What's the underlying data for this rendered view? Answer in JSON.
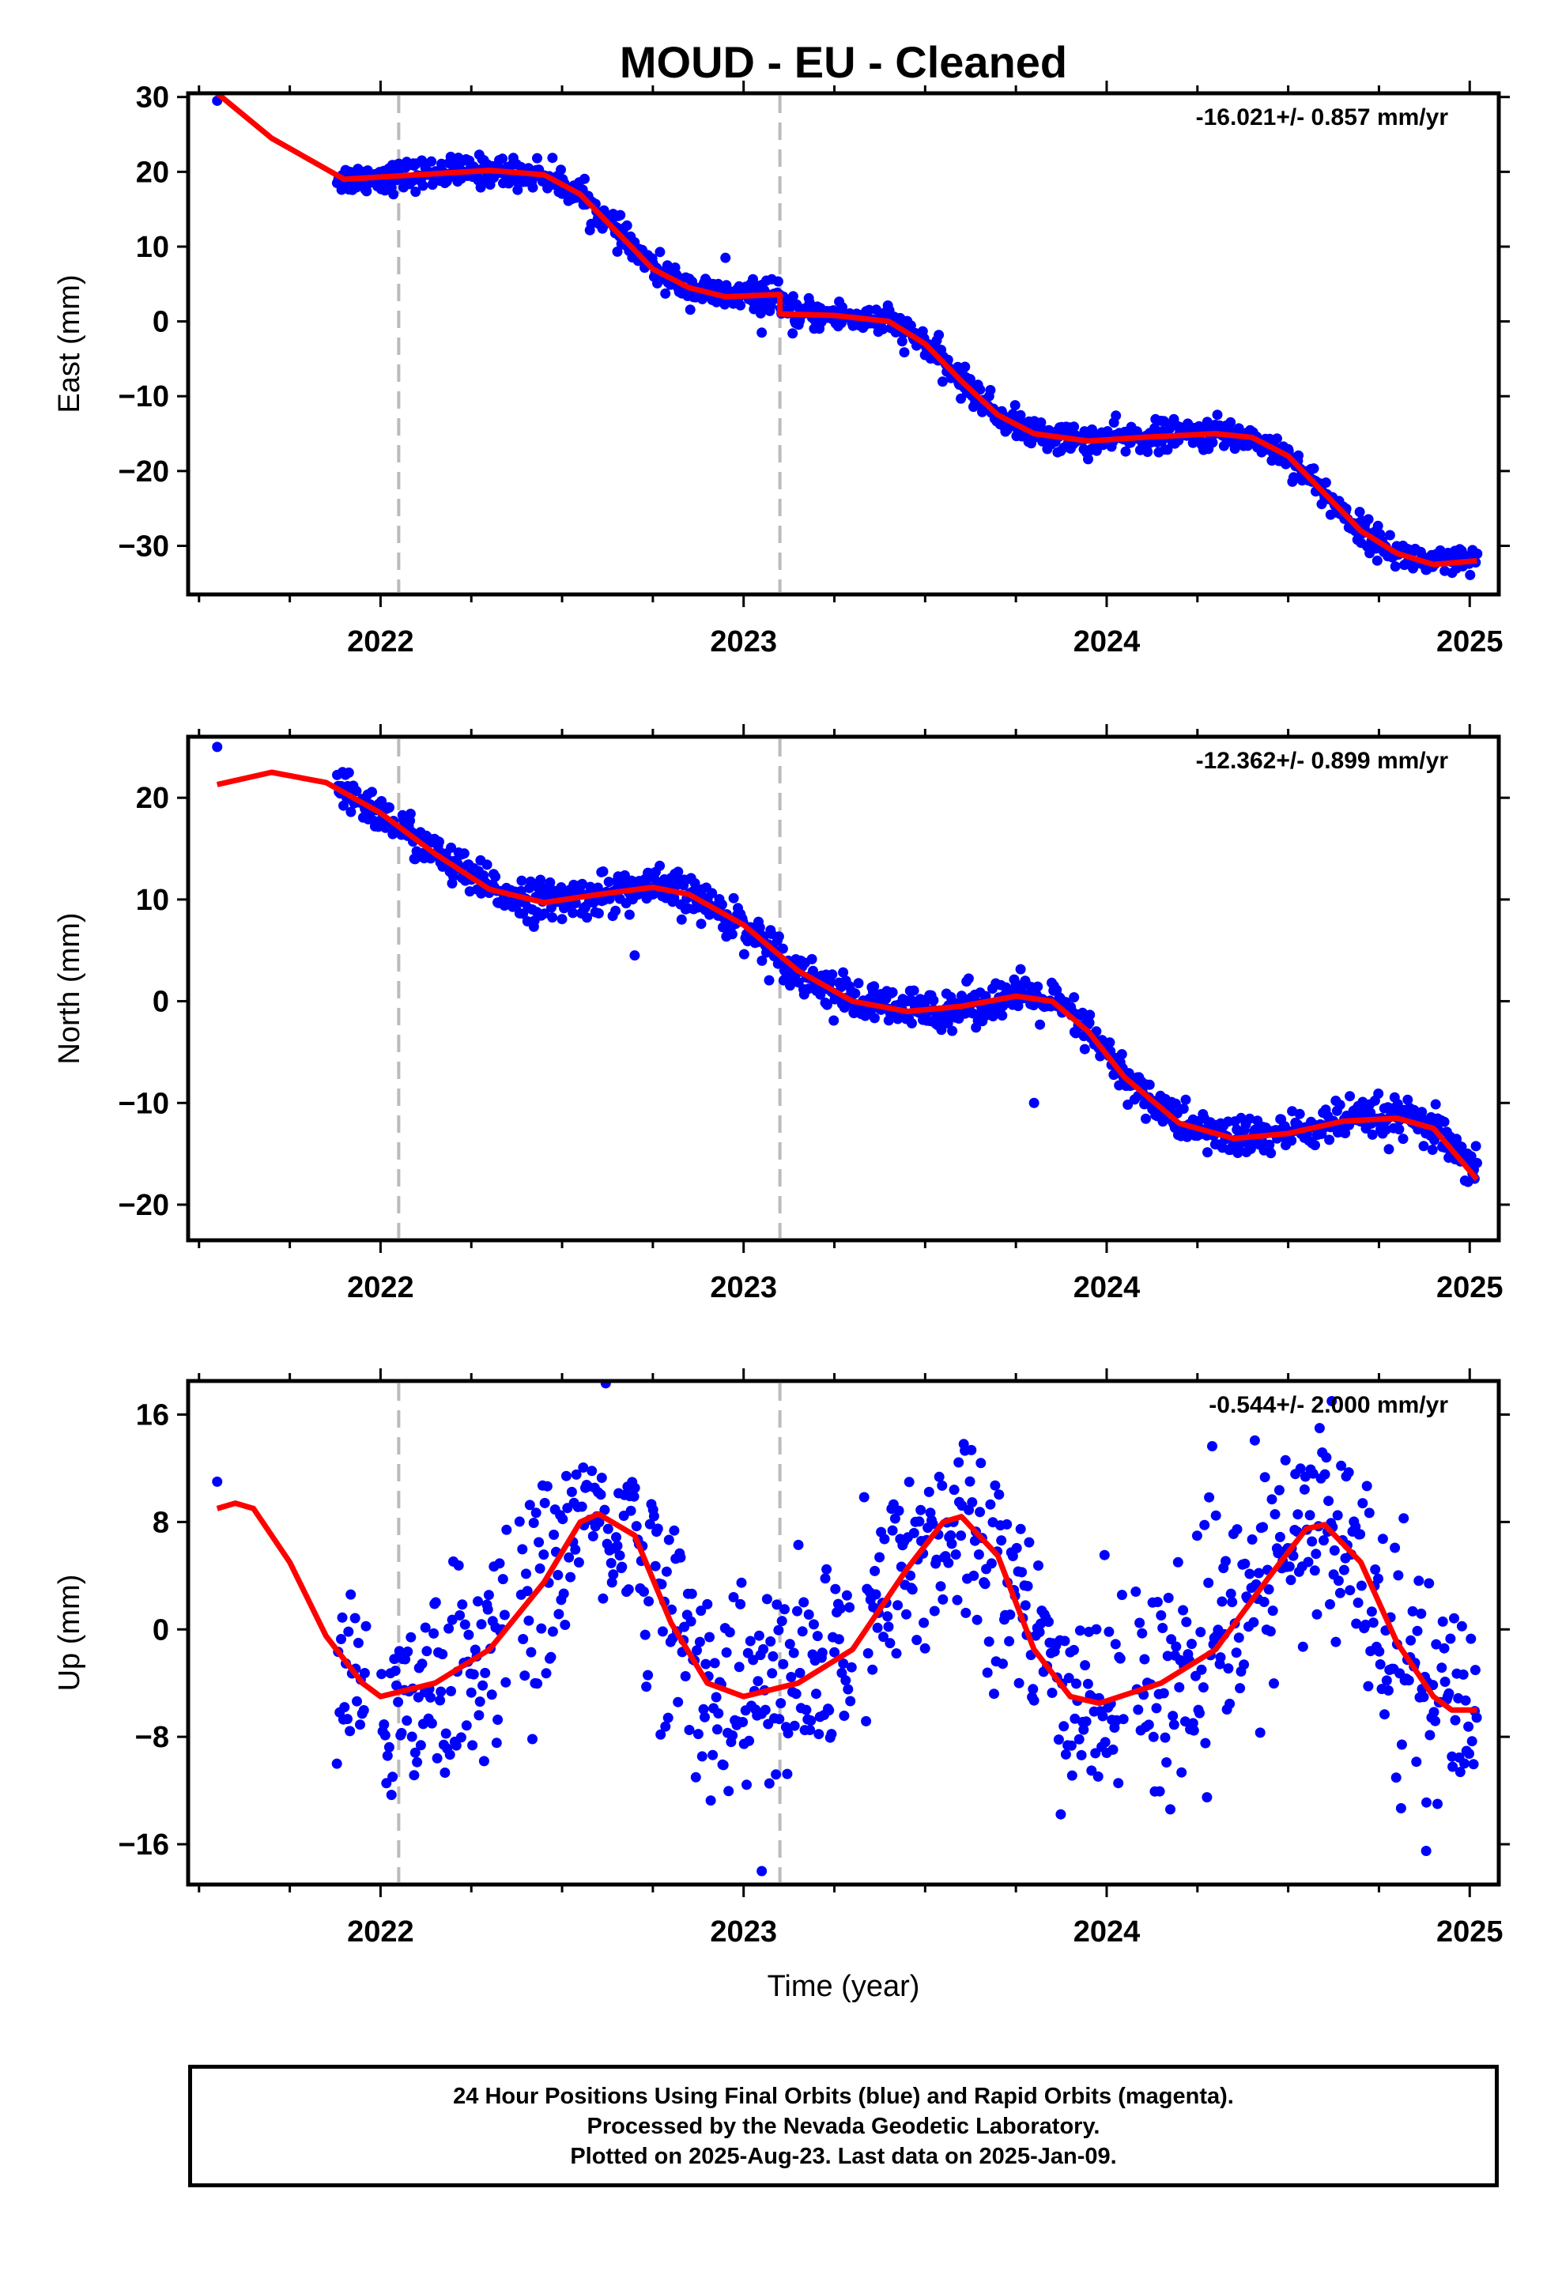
{
  "title": "MOUD  - EU - Cleaned",
  "xlabel": "Time (year)",
  "caption": {
    "line1": "24 Hour Positions Using Final Orbits (blue) and Rapid Orbits (magenta).",
    "line2": "Processed by the Nevada Geodetic Laboratory.",
    "line3": "Plotted on 2025-Aug-23. Last data on 2025-Jan-09."
  },
  "colors": {
    "points": "#0000ff",
    "fit": "#ff0000",
    "breaks": "#bbbbbb",
    "frame": "#000000"
  },
  "chart_data": [
    {
      "type": "scatter",
      "ylabel": "East (mm)",
      "rate_text": "-16.021+/- 0.857 mm/yr",
      "xlim": [
        2021.47,
        2025.08
      ],
      "ylim": [
        -36.5,
        30.5
      ],
      "yticks": [
        30,
        20,
        10,
        0,
        -10,
        -20,
        -30
      ],
      "xticks": [
        2022,
        2023,
        2024,
        2025
      ],
      "breaks": [
        2022.05,
        2023.1
      ],
      "data_range": [
        2021.88,
        2025.02
      ],
      "noise": 1.0,
      "outliers": [
        [
          2021.55,
          29.5
        ],
        [
          2022.95,
          8.5
        ],
        [
          2023.05,
          -1.5
        ]
      ],
      "fit": [
        [
          2021.55,
          30.5
        ],
        [
          2021.7,
          24.5
        ],
        [
          2021.9,
          19.0
        ],
        [
          2022.1,
          19.6
        ],
        [
          2022.3,
          20.2
        ],
        [
          2022.45,
          19.6
        ],
        [
          2022.55,
          17.0
        ],
        [
          2022.65,
          12.0
        ],
        [
          2022.75,
          7.0
        ],
        [
          2022.85,
          4.5
        ],
        [
          2022.95,
          3.3
        ],
        [
          2023.1,
          3.6
        ],
        [
          2023.1,
          1.0
        ],
        [
          2023.25,
          0.8
        ],
        [
          2023.4,
          0.0
        ],
        [
          2023.5,
          -3.0
        ],
        [
          2023.6,
          -8.0
        ],
        [
          2023.7,
          -12.5
        ],
        [
          2023.8,
          -15.0
        ],
        [
          2023.95,
          -16.0
        ],
        [
          2024.1,
          -15.5
        ],
        [
          2024.3,
          -15.0
        ],
        [
          2024.4,
          -15.5
        ],
        [
          2024.5,
          -18.0
        ],
        [
          2024.6,
          -23.0
        ],
        [
          2024.7,
          -28.0
        ],
        [
          2024.8,
          -31.0
        ],
        [
          2024.9,
          -32.5
        ],
        [
          2025.02,
          -32.0
        ]
      ]
    },
    {
      "type": "scatter",
      "ylabel": "North (mm)",
      "rate_text": "-12.362+/- 0.899 mm/yr",
      "xlim": [
        2021.47,
        2025.08
      ],
      "ylim": [
        -23.5,
        26.0
      ],
      "yticks": [
        20,
        10,
        0,
        -10,
        -20
      ],
      "xticks": [
        2022,
        2023,
        2024,
        2025
      ],
      "breaks": [
        2022.05,
        2023.1
      ],
      "data_range": [
        2021.88,
        2025.02
      ],
      "noise": 1.0,
      "outliers": [
        [
          2021.55,
          25.0
        ],
        [
          2022.7,
          4.5
        ],
        [
          2023.8,
          -10.0
        ]
      ],
      "fit": [
        [
          2021.55,
          21.3
        ],
        [
          2021.7,
          22.5
        ],
        [
          2021.85,
          21.5
        ],
        [
          2022.0,
          18.5
        ],
        [
          2022.15,
          14.5
        ],
        [
          2022.3,
          11.0
        ],
        [
          2022.45,
          9.7
        ],
        [
          2022.6,
          10.5
        ],
        [
          2022.75,
          11.2
        ],
        [
          2022.85,
          10.5
        ],
        [
          2023.0,
          7.5
        ],
        [
          2023.15,
          3.0
        ],
        [
          2023.3,
          0.0
        ],
        [
          2023.45,
          -1.0
        ],
        [
          2023.6,
          -0.5
        ],
        [
          2023.75,
          0.5
        ],
        [
          2023.85,
          0.0
        ],
        [
          2023.95,
          -3.0
        ],
        [
          2024.05,
          -7.5
        ],
        [
          2024.2,
          -12.0
        ],
        [
          2024.35,
          -13.5
        ],
        [
          2024.5,
          -13.0
        ],
        [
          2024.65,
          -11.8
        ],
        [
          2024.8,
          -11.5
        ],
        [
          2024.9,
          -12.5
        ],
        [
          2025.02,
          -17.5
        ]
      ]
    },
    {
      "type": "scatter",
      "ylabel": "Up (mm)",
      "rate_text": "-0.544+/- 2.000 mm/yr",
      "xlim": [
        2021.47,
        2025.08
      ],
      "ylim": [
        -19.0,
        18.5
      ],
      "yticks": [
        16,
        8,
        0,
        -8,
        -16
      ],
      "xticks": [
        2022,
        2023,
        2024,
        2025
      ],
      "breaks": [
        2022.05,
        2023.1
      ],
      "data_range": [
        2021.88,
        2025.02
      ],
      "noise": 4.0,
      "outliers": [
        [
          2021.55,
          11.0
        ],
        [
          2023.05,
          -18.0
        ],
        [
          2024.88,
          -16.5
        ],
        [
          2024.62,
          17.0
        ]
      ],
      "fit": [
        [
          2021.55,
          9.0
        ],
        [
          2021.6,
          9.4
        ],
        [
          2021.65,
          9.0
        ],
        [
          2021.75,
          5.0
        ],
        [
          2021.85,
          -0.5
        ],
        [
          2021.95,
          -4.0
        ],
        [
          2022.0,
          -5.0
        ],
        [
          2022.15,
          -4.0
        ],
        [
          2022.3,
          -1.5
        ],
        [
          2022.45,
          3.5
        ],
        [
          2022.55,
          8.0
        ],
        [
          2022.6,
          8.6
        ],
        [
          2022.7,
          7.0
        ],
        [
          2022.8,
          0.5
        ],
        [
          2022.9,
          -4.0
        ],
        [
          2023.0,
          -5.0
        ],
        [
          2023.15,
          -4.0
        ],
        [
          2023.3,
          -1.5
        ],
        [
          2023.45,
          4.5
        ],
        [
          2023.55,
          8.0
        ],
        [
          2023.6,
          8.4
        ],
        [
          2023.7,
          5.5
        ],
        [
          2023.8,
          -1.5
        ],
        [
          2023.9,
          -5.0
        ],
        [
          2023.98,
          -5.5
        ],
        [
          2024.15,
          -4.0
        ],
        [
          2024.3,
          -1.5
        ],
        [
          2024.45,
          4.0
        ],
        [
          2024.55,
          7.5
        ],
        [
          2024.6,
          7.8
        ],
        [
          2024.7,
          5.0
        ],
        [
          2024.8,
          -1.0
        ],
        [
          2024.9,
          -5.0
        ],
        [
          2024.95,
          -6.0
        ],
        [
          2025.02,
          -6.0
        ]
      ]
    }
  ]
}
